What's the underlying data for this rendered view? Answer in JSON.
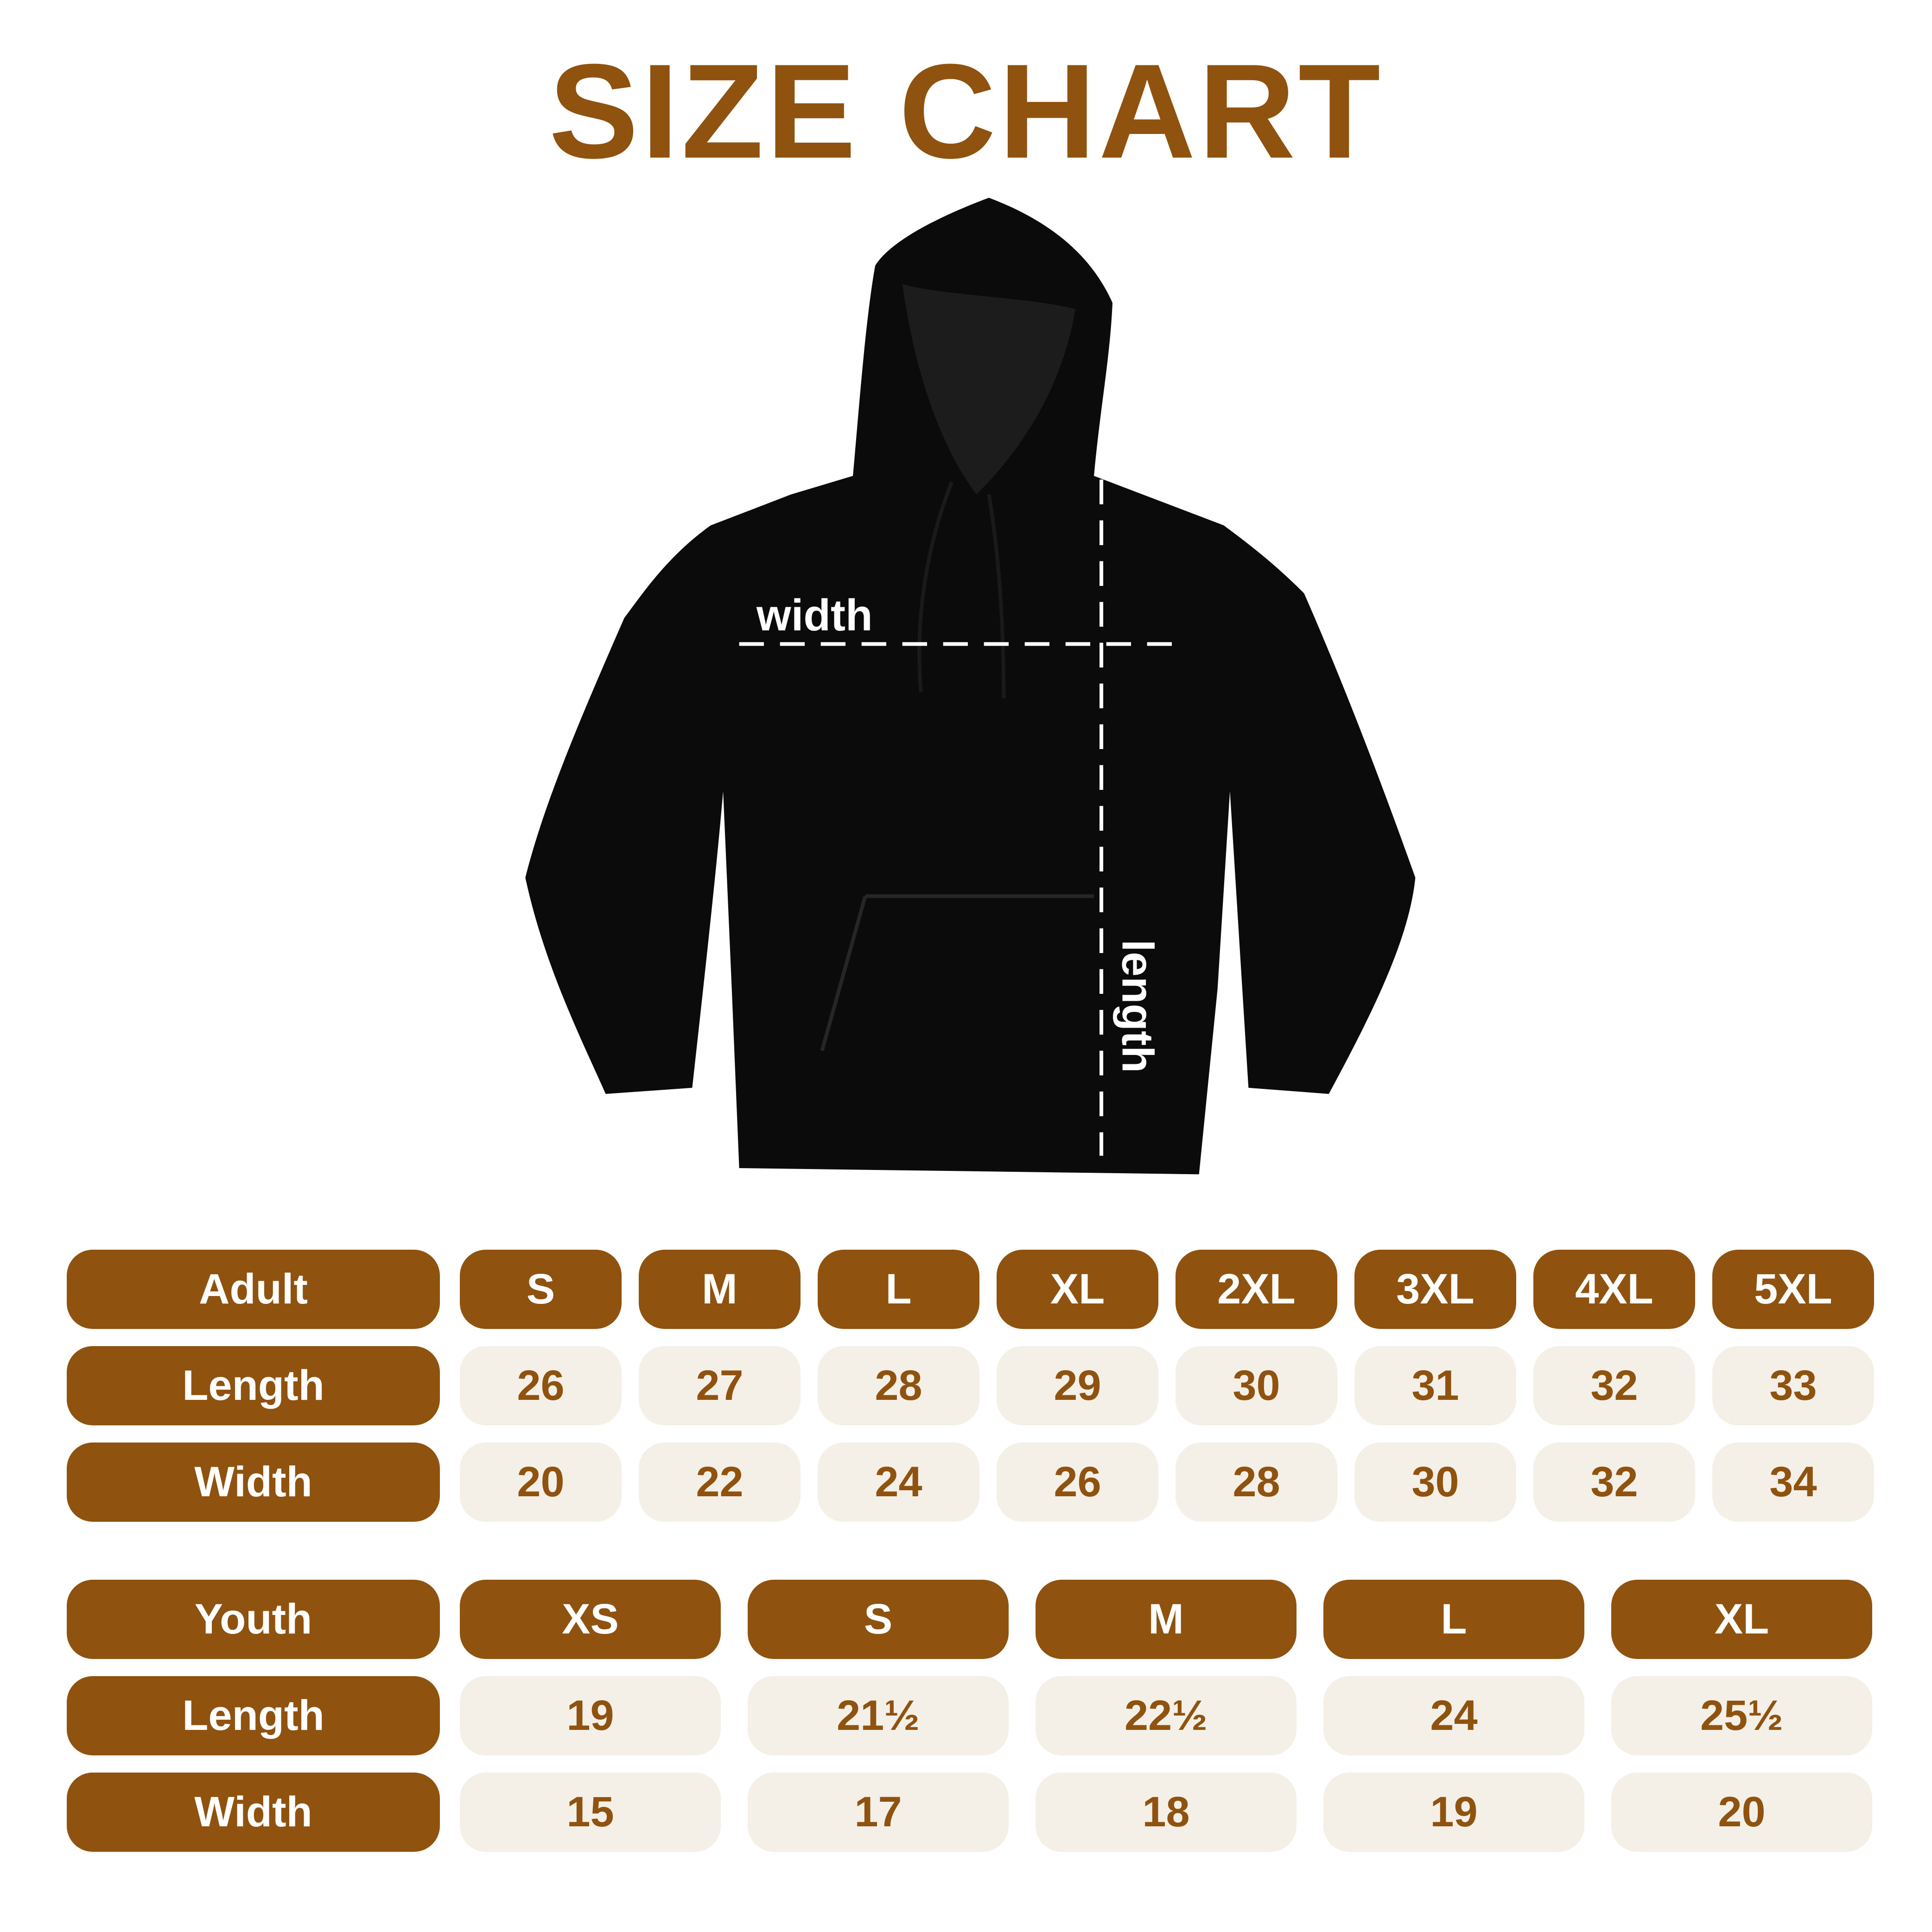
{
  "title": "SIZE CHART",
  "diagram": {
    "width_label": "width",
    "length_label": "length"
  },
  "colors": {
    "brand": "#8f520f",
    "cell_bg": "#f4efe7",
    "garment": "#0b0b0b"
  },
  "adult": {
    "header": "Adult",
    "sizes": [
      "S",
      "M",
      "L",
      "XL",
      "2XL",
      "3XL",
      "4XL",
      "5XL"
    ],
    "rows": [
      {
        "label": "Length",
        "values": [
          "26",
          "27",
          "28",
          "29",
          "30",
          "31",
          "32",
          "33"
        ]
      },
      {
        "label": "Width",
        "values": [
          "20",
          "22",
          "24",
          "26",
          "28",
          "30",
          "32",
          "34"
        ]
      }
    ]
  },
  "youth": {
    "header": "Youth",
    "sizes": [
      "XS",
      "S",
      "M",
      "L",
      "XL"
    ],
    "rows": [
      {
        "label": "Length",
        "values": [
          "19",
          "21½",
          "22½",
          "24",
          "25½"
        ]
      },
      {
        "label": "Width",
        "values": [
          "15",
          "17",
          "18",
          "19",
          "20"
        ]
      }
    ]
  }
}
